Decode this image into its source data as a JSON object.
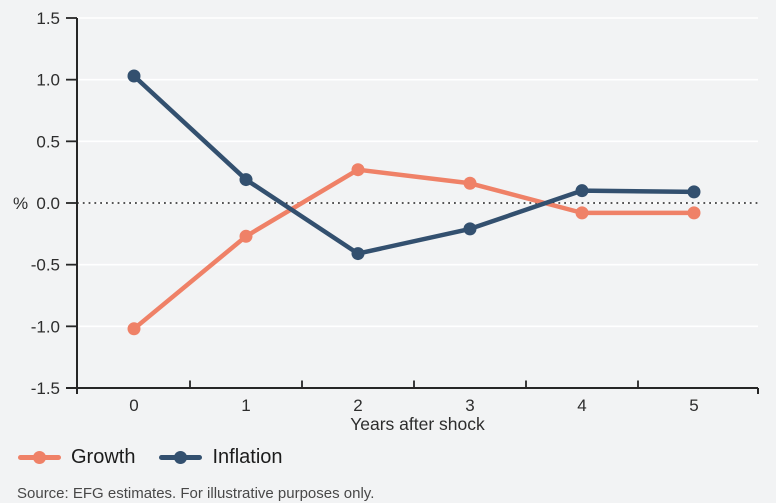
{
  "chart_data": {
    "type": "line",
    "x": [
      0,
      1,
      2,
      3,
      4,
      5
    ],
    "x_tick_labels": [
      "0",
      "1",
      "2",
      "3",
      "4",
      "5"
    ],
    "series": [
      {
        "name": "Growth",
        "color": "#EF8167",
        "values": [
          -1.02,
          -0.27,
          0.27,
          0.16,
          -0.08,
          -0.08
        ]
      },
      {
        "name": "Inflation",
        "color": "#33506F",
        "values": [
          1.03,
          0.19,
          -0.41,
          -0.21,
          0.1,
          0.09
        ]
      }
    ],
    "title": "",
    "xlabel": "Years after shock",
    "ylabel": "%",
    "ylim": [
      -1.5,
      1.5
    ],
    "y_ticks": [
      1.5,
      1.0,
      0.5,
      0.0,
      -0.5,
      -1.0,
      -1.5
    ],
    "y_tick_labels": [
      "1.5",
      "1.0",
      "0.5",
      "0.0",
      "-0.5",
      "-1.0",
      "-1.5"
    ],
    "zero_line_dotted": true,
    "grid": "horizontal-white-gridlines",
    "legend_position": "bottom-left"
  },
  "colors": {
    "background": "#f2f3f4",
    "gridline": "#ffffff",
    "axis": "#262626",
    "zero_line": "#1f1f1f",
    "growth": "#EF8167",
    "inflation": "#33506F"
  },
  "source_note": "Source: EFG estimates. For illustrative purposes only."
}
